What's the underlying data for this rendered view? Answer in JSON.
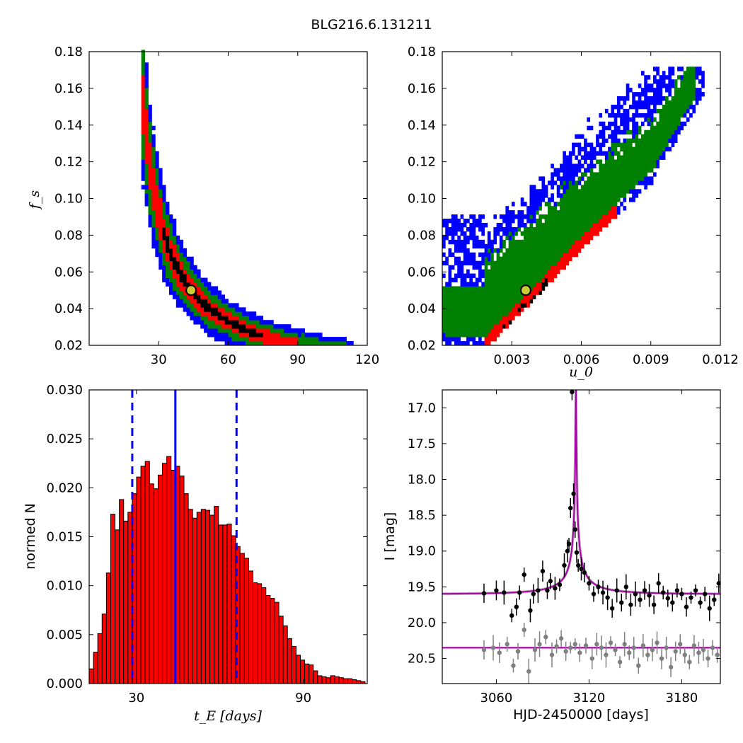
{
  "title": "BLG216.6.131211",
  "colors": {
    "level1": "#000000",
    "level2": "#ff0000",
    "level3": "#008000",
    "level4": "#0000ff",
    "marker_fill": "#cccc33",
    "hist_fill": "#ff0000",
    "vline": "#0000ff",
    "model": "#aa00aa",
    "data_black": "#000000",
    "data_gray": "#808080"
  },
  "chart_data": [
    {
      "id": "tE-fs",
      "type": "heatmap",
      "xlabel": "",
      "ylabel": "f_s",
      "xlim": [
        0,
        120
      ],
      "ylim": [
        0.02,
        0.18
      ],
      "xticks": [
        "30",
        "60",
        "90",
        "120"
      ],
      "yticks": [
        "0.02",
        "0.04",
        "0.06",
        "0.08",
        "0.10",
        "0.12",
        "0.14",
        "0.16",
        "0.18"
      ],
      "band_curve": {
        "form": "fs = a / (tE - b)",
        "a": 1.56,
        "b": 13
      },
      "band_x_range": [
        15,
        113
      ],
      "best_fit": {
        "x": 44,
        "y": 0.05
      },
      "grid": false
    },
    {
      "id": "u0-fs",
      "type": "heatmap",
      "xlabel": "u_0",
      "ylabel": "",
      "xlim": [
        0,
        0.012
      ],
      "ylim": [
        0.02,
        0.18
      ],
      "xticks": [
        "0.003",
        "0.006",
        "0.009",
        "0.012"
      ],
      "yticks": [
        "0.02",
        "0.04",
        "0.06",
        "0.08",
        "0.10",
        "0.12",
        "0.14",
        "0.16",
        "0.18"
      ],
      "ridge": [
        [
          0.0018,
          0.02
        ],
        [
          0.0036,
          0.043
        ],
        [
          0.006,
          0.075
        ],
        [
          0.009,
          0.11
        ],
        [
          0.0115,
          0.165
        ]
      ],
      "best_fit": {
        "x": 0.0036,
        "y": 0.05
      },
      "grid": false
    },
    {
      "id": "tE-hist",
      "type": "bar",
      "xlabel": "t_E [days]",
      "ylabel": "normed N",
      "xlim": [
        13,
        113
      ],
      "ylim": [
        0,
        0.03
      ],
      "xticks": [
        "30",
        "90"
      ],
      "yticks": [
        "0.000",
        "0.005",
        "0.010",
        "0.015",
        "0.020",
        "0.025",
        "0.030"
      ],
      "bin_start": 13,
      "bin_width": 1.55,
      "values": [
        0.0015,
        0.0032,
        0.0051,
        0.0071,
        0.0113,
        0.0173,
        0.0157,
        0.0188,
        0.0166,
        0.0175,
        0.0194,
        0.0211,
        0.0222,
        0.0227,
        0.0204,
        0.0199,
        0.0213,
        0.0225,
        0.0232,
        0.0218,
        0.0222,
        0.0212,
        0.0194,
        0.0178,
        0.0169,
        0.0175,
        0.0178,
        0.0177,
        0.0172,
        0.0181,
        0.0162,
        0.0162,
        0.0163,
        0.0151,
        0.014,
        0.0133,
        0.0128,
        0.0115,
        0.0103,
        0.0102,
        0.0098,
        0.009,
        0.0087,
        0.0083,
        0.0069,
        0.0059,
        0.0046,
        0.0038,
        0.0029,
        0.0024,
        0.002,
        0.0019,
        0.0013,
        0.0008,
        0.0007,
        0.0006,
        0.0008,
        0.0007,
        0.0006,
        0.0005,
        0.0005,
        0.0004,
        0.0003,
        0.0002,
        0.0001
      ],
      "median": 44,
      "interval": [
        28.5,
        66
      ],
      "grid": false
    },
    {
      "id": "lightcurve",
      "type": "scatter",
      "xlabel": "HJD-2450000 [days]",
      "ylabel": "I [mag]",
      "xlim": [
        3025,
        3205
      ],
      "ylim": [
        20.85,
        16.75
      ],
      "xticks": [
        "3060",
        "3120",
        "3180"
      ],
      "yticks": [
        "17.0",
        "17.5",
        "18.0",
        "18.5",
        "19.0",
        "19.5",
        "20.0",
        "20.5"
      ],
      "model_upper": {
        "t0": 3111.5,
        "u0": 0.0036,
        "tE": 44,
        "base_mag": 19.6,
        "fs": 0.05
      },
      "model_lower": {
        "base_mag": 20.35
      },
      "series": [
        {
          "name": "",
          "color": "black",
          "x": [
            3052,
            3060,
            3065,
            3070,
            3073,
            3075,
            3078,
            3082,
            3084,
            3087,
            3090,
            3093,
            3095,
            3098,
            3101,
            3104,
            3106,
            3107,
            3108,
            3109,
            3110,
            3111,
            3112,
            3113,
            3115,
            3117,
            3120,
            3123,
            3126,
            3129,
            3132,
            3135,
            3138,
            3141,
            3144,
            3147,
            3150,
            3153,
            3156,
            3159,
            3162,
            3165,
            3168,
            3171,
            3174,
            3177,
            3180,
            3183,
            3186,
            3189,
            3192,
            3195,
            3198,
            3201,
            3204
          ],
          "y": [
            19.59,
            19.55,
            19.58,
            19.9,
            19.78,
            19.58,
            19.33,
            19.83,
            19.6,
            19.55,
            19.28,
            19.55,
            19.42,
            19.52,
            19.47,
            19.2,
            19.0,
            18.9,
            18.4,
            16.78,
            18.2,
            18.7,
            19.02,
            19.2,
            19.25,
            19.3,
            19.45,
            19.6,
            19.5,
            19.58,
            19.65,
            19.8,
            19.55,
            19.72,
            19.5,
            19.75,
            19.6,
            19.68,
            19.55,
            19.62,
            19.75,
            19.45,
            19.58,
            19.66,
            19.72,
            19.55,
            19.6,
            19.78,
            19.65,
            19.55,
            19.72,
            19.6,
            19.8,
            19.68,
            19.45
          ]
        },
        {
          "name": "",
          "color": "gray",
          "x": [
            3052,
            3058,
            3062,
            3067,
            3071,
            3074,
            3078,
            3081,
            3085,
            3088,
            3092,
            3096,
            3099,
            3102,
            3105,
            3108,
            3111,
            3114,
            3118,
            3122,
            3125,
            3128,
            3131,
            3134,
            3137,
            3140,
            3143,
            3146,
            3149,
            3152,
            3155,
            3158,
            3161,
            3164,
            3167,
            3170,
            3173,
            3176,
            3179,
            3182,
            3185,
            3188,
            3191,
            3194,
            3197,
            3200,
            3203
          ],
          "y": [
            20.38,
            20.35,
            20.42,
            20.3,
            20.6,
            20.4,
            20.1,
            20.68,
            20.38,
            20.3,
            20.2,
            20.45,
            20.33,
            20.22,
            20.4,
            20.35,
            20.3,
            20.42,
            20.32,
            20.5,
            20.3,
            20.35,
            20.45,
            20.28,
            20.38,
            20.55,
            20.3,
            20.42,
            20.35,
            20.6,
            20.32,
            20.45,
            20.38,
            20.28,
            20.5,
            20.35,
            20.62,
            20.4,
            20.3,
            20.45,
            20.55,
            20.32,
            20.42,
            20.38,
            20.5,
            20.35,
            20.45
          ]
        }
      ],
      "grid": false
    }
  ]
}
